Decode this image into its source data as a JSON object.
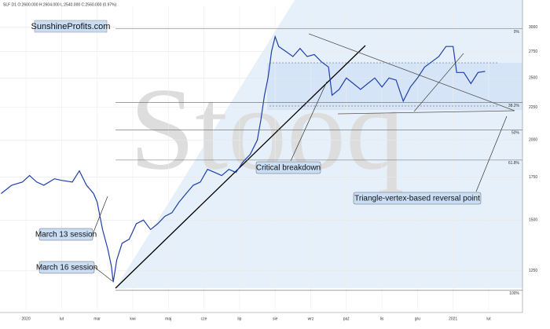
{
  "chart_data": {
    "type": "line",
    "header": "SLF D1 O:2600.000 H:2604.000 L:2540.000 C:2560.000 (0.97%)",
    "title": "SunshineProfits.com",
    "watermark": "Stooq",
    "log_scale": true,
    "grid": true,
    "xlim": [
      -0.73,
      13.95
    ],
    "ylim": [
      1085,
      3235
    ],
    "xticks": [
      {
        "value": 0,
        "label": "2020"
      },
      {
        "value": 1,
        "label": "lut"
      },
      {
        "value": 2,
        "label": "mar"
      },
      {
        "value": 3,
        "label": "kwi"
      },
      {
        "value": 4,
        "label": "maj"
      },
      {
        "value": 5,
        "label": "cze"
      },
      {
        "value": 6,
        "label": "lip"
      },
      {
        "value": 7,
        "label": "sie"
      },
      {
        "value": 8,
        "label": "wrz"
      },
      {
        "value": 9,
        "label": "paź"
      },
      {
        "value": 10,
        "label": "lis"
      },
      {
        "value": 11,
        "label": "gru"
      },
      {
        "value": 12,
        "label": "2021"
      },
      {
        "value": 13,
        "label": "lut"
      }
    ],
    "yticks": [
      1250,
      1500,
      1750,
      2000,
      2250,
      2500,
      2750,
      3000
    ],
    "levels": [
      {
        "value": 2985,
        "label": "0%"
      },
      {
        "value": 2289,
        "label": "38.2%"
      },
      {
        "value": 2075,
        "label": "50%"
      },
      {
        "value": 1861,
        "label": "61.8%"
      },
      {
        "value": 1165,
        "label": "100%"
      }
    ],
    "annotations": [
      "Critical breakdown",
      "Triangle-vertex-based reversal point",
      "March 13 session",
      "March 16 session"
    ],
    "series": [
      {
        "color": "#1f3fa8",
        "x": [
          -0.7,
          -0.4,
          -0.1,
          0.1,
          0.3,
          0.5,
          0.8,
          1.0,
          1.3,
          1.5,
          1.7,
          1.9,
          2.0,
          2.15,
          2.3,
          2.4,
          2.45,
          2.55,
          2.7,
          2.9,
          3.1,
          3.3,
          3.5,
          3.7,
          3.9,
          4.1,
          4.3,
          4.5,
          4.7,
          4.9,
          5.1,
          5.3,
          5.5,
          5.7,
          5.9,
          6.1,
          6.3,
          6.5,
          6.6,
          6.7,
          6.8,
          6.9,
          7.0,
          7.1,
          7.3,
          7.5,
          7.7,
          7.9,
          8.1,
          8.3,
          8.5,
          8.6,
          8.8,
          9.0,
          9.2,
          9.4,
          9.6,
          9.8,
          10.0,
          10.2,
          10.4,
          10.6,
          10.8,
          11.0,
          11.2,
          11.4,
          11.6,
          11.8,
          12.0,
          12.1,
          12.3,
          12.5,
          12.7,
          12.9
        ],
        "values": [
          1650,
          1700,
          1720,
          1760,
          1720,
          1700,
          1740,
          1730,
          1720,
          1790,
          1700,
          1650,
          1600,
          1450,
          1350,
          1270,
          1200,
          1300,
          1380,
          1400,
          1480,
          1500,
          1450,
          1480,
          1520,
          1540,
          1600,
          1650,
          1700,
          1720,
          1800,
          1780,
          1760,
          1800,
          1780,
          1850,
          1900,
          2000,
          2150,
          2350,
          2500,
          2750,
          2900,
          2800,
          2750,
          2700,
          2780,
          2700,
          2720,
          2650,
          2600,
          2350,
          2400,
          2500,
          2450,
          2400,
          2450,
          2500,
          2420,
          2500,
          2480,
          2300,
          2420,
          2500,
          2600,
          2650,
          2700,
          2800,
          2800,
          2550,
          2550,
          2450,
          2550,
          2560
        ]
      }
    ]
  }
}
